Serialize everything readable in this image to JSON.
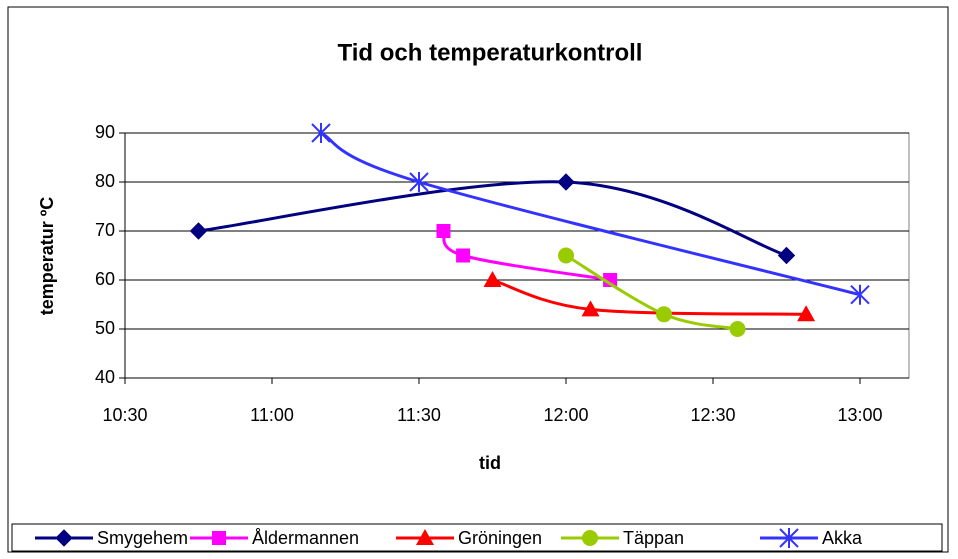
{
  "chart_data": {
    "type": "line",
    "title": "Tid och temperaturkontroll",
    "xlabel": "tid",
    "ylabel": "temperatur ºC",
    "xlim": [
      630,
      790
    ],
    "xticks": [
      {
        "value": 630,
        "label": "10:30"
      },
      {
        "value": 660,
        "label": "11:00"
      },
      {
        "value": 690,
        "label": "11:30"
      },
      {
        "value": 720,
        "label": "12:00"
      },
      {
        "value": 750,
        "label": "12:30"
      },
      {
        "value": 780,
        "label": "13:00"
      }
    ],
    "ylim": [
      40,
      90
    ],
    "yticks": [
      40,
      50,
      60,
      70,
      80,
      90
    ],
    "grid": true,
    "legend": "bottom",
    "series": [
      {
        "name": "Smygehem",
        "color": "#000080",
        "marker": "diamond",
        "x": [
          645,
          720,
          765
        ],
        "values": [
          70,
          80,
          65
        ]
      },
      {
        "name": "Åldermannen",
        "color": "#ff00ff",
        "marker": "square",
        "x": [
          695,
          699,
          729
        ],
        "values": [
          70,
          65,
          60
        ]
      },
      {
        "name": "Gröningen",
        "color": "#ff0000",
        "marker": "triangle",
        "x": [
          705,
          725,
          769
        ],
        "values": [
          60,
          54,
          53
        ]
      },
      {
        "name": "Täppan",
        "color": "#99cc00",
        "marker": "circle",
        "x": [
          720,
          740,
          755
        ],
        "values": [
          65,
          53,
          50
        ]
      },
      {
        "name": "Akka",
        "color": "#3333ff",
        "marker": "star",
        "x": [
          670,
          690,
          780
        ],
        "values": [
          90,
          80,
          57
        ]
      }
    ]
  }
}
